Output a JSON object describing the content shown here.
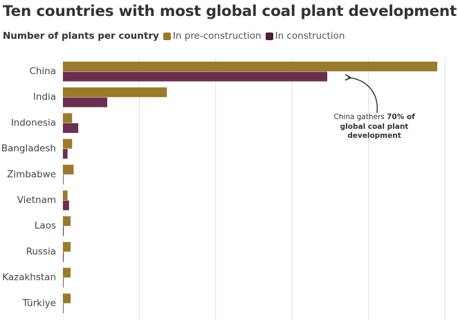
{
  "title": "Ten countries with most global coal plant development",
  "legend": {
    "lead": "Number of plants per country",
    "items": [
      {
        "label": "In pre-construction",
        "color": "#9a7a2c"
      },
      {
        "label": "In construction",
        "color": "#6b2f4f"
      }
    ]
  },
  "annotation": {
    "text_pre": "China gathers",
    "text_bold": "70% of global coal plant development"
  },
  "chart_data": {
    "type": "bar",
    "orientation": "horizontal",
    "categories": [
      "China",
      "India",
      "Indonesia",
      "Bangladesh",
      "Zimbabwe",
      "Vietnam",
      "Laos",
      "Russia",
      "Kazakhstan",
      "Türkiye"
    ],
    "series": [
      {
        "name": "In pre-construction",
        "color": "#9a7a2c",
        "values": [
          245,
          68,
          6,
          6,
          7,
          3,
          5,
          5,
          5,
          5
        ]
      },
      {
        "name": "In construction",
        "color": "#6b2f4f",
        "values": [
          173,
          29,
          10,
          3,
          0.3,
          4,
          0.5,
          0.5,
          0.2,
          0.1
        ]
      }
    ],
    "xlim": [
      0,
      250
    ],
    "gridlines": [
      0,
      50,
      100,
      150,
      200,
      250
    ],
    "grid": true,
    "legend_position": "top-left"
  }
}
